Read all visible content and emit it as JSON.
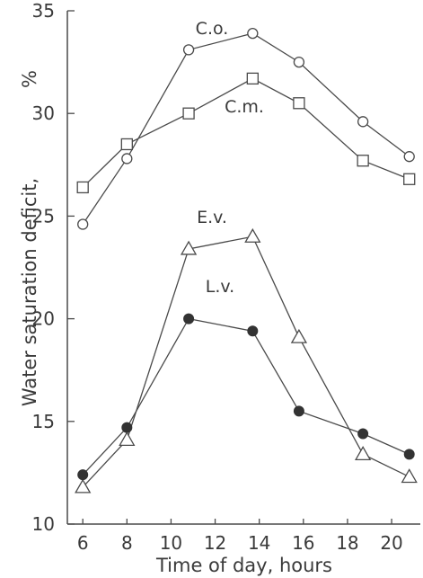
{
  "chart_data": {
    "type": "line",
    "title": "",
    "xlabel": "Time of day, hours",
    "ylabel": "Water saturation deficit,",
    "ylabel_unit": "%",
    "xlim": [
      5.3,
      21.3
    ],
    "ylim": [
      10,
      35
    ],
    "xticks": [
      6,
      8,
      10,
      12,
      14,
      16,
      18,
      20
    ],
    "yticks": [
      10,
      15,
      20,
      25,
      30,
      35
    ],
    "grid": false,
    "series": [
      {
        "name": "C.o.",
        "marker": "open-circle",
        "x": [
          6,
          8,
          10.8,
          13.7,
          15.8,
          18.7,
          20.8
        ],
        "y": [
          24.6,
          27.8,
          33.1,
          33.9,
          32.5,
          29.6,
          27.9
        ]
      },
      {
        "name": "C.m.",
        "marker": "open-square",
        "x": [
          6,
          8,
          10.8,
          13.7,
          15.8,
          18.7,
          20.8
        ],
        "y": [
          26.4,
          28.5,
          30.0,
          31.7,
          30.5,
          27.7,
          26.8
        ]
      },
      {
        "name": "E.v.",
        "marker": "open-triangle",
        "x": [
          6,
          8,
          10.8,
          13.7,
          15.8,
          18.7,
          20.8
        ],
        "y": [
          11.8,
          14.1,
          23.4,
          24.0,
          19.1,
          13.4,
          12.3
        ]
      },
      {
        "name": "L.v.",
        "marker": "filled-circle",
        "x": [
          6,
          8,
          10.8,
          13.7,
          15.8,
          18.7,
          20.8
        ],
        "y": [
          12.4,
          14.7,
          20.0,
          19.4,
          15.5,
          14.4,
          13.4
        ]
      }
    ]
  }
}
